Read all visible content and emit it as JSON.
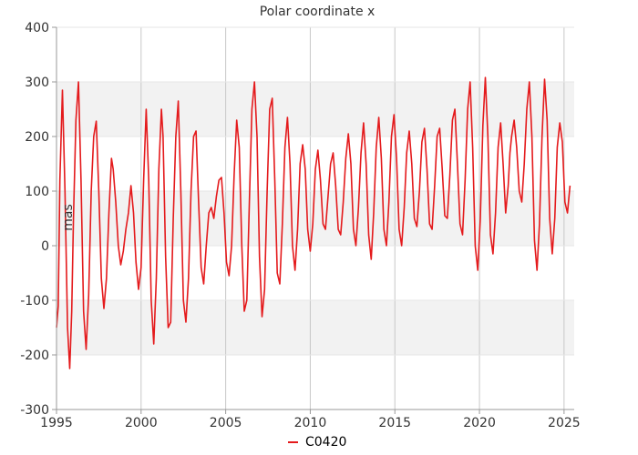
{
  "chart_data": {
    "type": "line",
    "title": "Polar coordinate x",
    "xlabel": "",
    "ylabel": "mas",
    "xlim": [
      1995,
      2025.6
    ],
    "ylim": [
      -300,
      400
    ],
    "x_ticks": [
      "1995",
      "2000",
      "2005",
      "2010",
      "2015",
      "2020",
      "2025"
    ],
    "y_ticks": [
      "-300",
      "-200",
      "-100",
      "0",
      "100",
      "200",
      "300",
      "400"
    ],
    "grid": true,
    "bands": [
      [
        -200,
        -100
      ],
      [
        0,
        100
      ],
      [
        200,
        300
      ]
    ],
    "legend": {
      "position": "bottom-center"
    },
    "colors": {
      "series": "#e41a1c",
      "band": "#f2f2f2",
      "grid": "#c8c8c8",
      "axis": "#999999"
    },
    "series": [
      {
        "name": "C0420",
        "points": [
          [
            1995.0,
            -150
          ],
          [
            1995.1,
            -110
          ],
          [
            1995.2,
            120
          ],
          [
            1995.35,
            285
          ],
          [
            1995.5,
            100
          ],
          [
            1995.65,
            -150
          ],
          [
            1995.78,
            -225
          ],
          [
            1995.9,
            -120
          ],
          [
            1996.0,
            50
          ],
          [
            1996.15,
            230
          ],
          [
            1996.3,
            300
          ],
          [
            1996.45,
            120
          ],
          [
            1996.6,
            -120
          ],
          [
            1996.75,
            -190
          ],
          [
            1996.9,
            -90
          ],
          [
            1997.05,
            100
          ],
          [
            1997.2,
            200
          ],
          [
            1997.35,
            228
          ],
          [
            1997.5,
            100
          ],
          [
            1997.65,
            -60
          ],
          [
            1997.8,
            -115
          ],
          [
            1997.95,
            -60
          ],
          [
            1998.1,
            60
          ],
          [
            1998.25,
            160
          ],
          [
            1998.35,
            140
          ],
          [
            1998.5,
            80
          ],
          [
            1998.65,
            0
          ],
          [
            1998.8,
            -35
          ],
          [
            1998.95,
            -10
          ],
          [
            1999.1,
            30
          ],
          [
            1999.25,
            60
          ],
          [
            1999.4,
            110
          ],
          [
            1999.55,
            60
          ],
          [
            1999.7,
            -30
          ],
          [
            1999.85,
            -80
          ],
          [
            2000.0,
            -40
          ],
          [
            2000.15,
            120
          ],
          [
            2000.3,
            250
          ],
          [
            2000.45,
            120
          ],
          [
            2000.6,
            -100
          ],
          [
            2000.75,
            -180
          ],
          [
            2000.9,
            -60
          ],
          [
            2001.05,
            140
          ],
          [
            2001.2,
            250
          ],
          [
            2001.3,
            200
          ],
          [
            2001.45,
            -20
          ],
          [
            2001.6,
            -150
          ],
          [
            2001.75,
            -140
          ],
          [
            2001.9,
            50
          ],
          [
            2002.05,
            200
          ],
          [
            2002.2,
            265
          ],
          [
            2002.35,
            100
          ],
          [
            2002.5,
            -100
          ],
          [
            2002.65,
            -140
          ],
          [
            2002.8,
            -60
          ],
          [
            2002.95,
            100
          ],
          [
            2003.1,
            200
          ],
          [
            2003.25,
            210
          ],
          [
            2003.4,
            80
          ],
          [
            2003.55,
            -40
          ],
          [
            2003.7,
            -70
          ],
          [
            2003.85,
            0
          ],
          [
            2004.0,
            60
          ],
          [
            2004.15,
            70
          ],
          [
            2004.3,
            50
          ],
          [
            2004.45,
            90
          ],
          [
            2004.6,
            120
          ],
          [
            2004.75,
            125
          ],
          [
            2004.9,
            60
          ],
          [
            2005.05,
            -30
          ],
          [
            2005.2,
            -55
          ],
          [
            2005.35,
            0
          ],
          [
            2005.5,
            130
          ],
          [
            2005.65,
            230
          ],
          [
            2005.8,
            180
          ],
          [
            2005.95,
            0
          ],
          [
            2006.1,
            -120
          ],
          [
            2006.25,
            -100
          ],
          [
            2006.4,
            80
          ],
          [
            2006.55,
            250
          ],
          [
            2006.7,
            300
          ],
          [
            2006.85,
            200
          ],
          [
            2007.0,
            -20
          ],
          [
            2007.15,
            -130
          ],
          [
            2007.3,
            -80
          ],
          [
            2007.45,
            100
          ],
          [
            2007.6,
            250
          ],
          [
            2007.75,
            270
          ],
          [
            2007.9,
            120
          ],
          [
            2008.05,
            -50
          ],
          [
            2008.2,
            -70
          ],
          [
            2008.35,
            40
          ],
          [
            2008.5,
            180
          ],
          [
            2008.65,
            235
          ],
          [
            2008.8,
            150
          ],
          [
            2008.95,
            0
          ],
          [
            2009.1,
            -45
          ],
          [
            2009.25,
            30
          ],
          [
            2009.4,
            150
          ],
          [
            2009.55,
            185
          ],
          [
            2009.7,
            140
          ],
          [
            2009.85,
            30
          ],
          [
            2010.0,
            -10
          ],
          [
            2010.15,
            40
          ],
          [
            2010.3,
            140
          ],
          [
            2010.45,
            175
          ],
          [
            2010.6,
            120
          ],
          [
            2010.75,
            40
          ],
          [
            2010.9,
            30
          ],
          [
            2011.05,
            90
          ],
          [
            2011.2,
            150
          ],
          [
            2011.35,
            170
          ],
          [
            2011.5,
            110
          ],
          [
            2011.65,
            30
          ],
          [
            2011.8,
            20
          ],
          [
            2011.95,
            80
          ],
          [
            2012.1,
            160
          ],
          [
            2012.25,
            205
          ],
          [
            2012.4,
            150
          ],
          [
            2012.55,
            30
          ],
          [
            2012.7,
            0
          ],
          [
            2012.85,
            70
          ],
          [
            2013.0,
            170
          ],
          [
            2013.15,
            225
          ],
          [
            2013.3,
            150
          ],
          [
            2013.45,
            20
          ],
          [
            2013.6,
            -25
          ],
          [
            2013.75,
            60
          ],
          [
            2013.9,
            180
          ],
          [
            2014.05,
            235
          ],
          [
            2014.2,
            160
          ],
          [
            2014.35,
            30
          ],
          [
            2014.5,
            0
          ],
          [
            2014.65,
            80
          ],
          [
            2014.8,
            200
          ],
          [
            2014.95,
            240
          ],
          [
            2015.1,
            160
          ],
          [
            2015.25,
            30
          ],
          [
            2015.4,
            0
          ],
          [
            2015.55,
            70
          ],
          [
            2015.7,
            170
          ],
          [
            2015.85,
            210
          ],
          [
            2016.0,
            150
          ],
          [
            2016.15,
            50
          ],
          [
            2016.3,
            35
          ],
          [
            2016.45,
            100
          ],
          [
            2016.6,
            190
          ],
          [
            2016.75,
            215
          ],
          [
            2016.9,
            140
          ],
          [
            2017.05,
            40
          ],
          [
            2017.2,
            30
          ],
          [
            2017.35,
            110
          ],
          [
            2017.5,
            200
          ],
          [
            2017.65,
            215
          ],
          [
            2017.8,
            140
          ],
          [
            2017.95,
            55
          ],
          [
            2018.1,
            50
          ],
          [
            2018.25,
            130
          ],
          [
            2018.4,
            230
          ],
          [
            2018.55,
            250
          ],
          [
            2018.7,
            150
          ],
          [
            2018.85,
            40
          ],
          [
            2019.0,
            20
          ],
          [
            2019.15,
            120
          ],
          [
            2019.3,
            250
          ],
          [
            2019.45,
            300
          ],
          [
            2019.6,
            180
          ],
          [
            2019.75,
            0
          ],
          [
            2019.9,
            -45
          ],
          [
            2020.05,
            50
          ],
          [
            2020.2,
            220
          ],
          [
            2020.35,
            308
          ],
          [
            2020.5,
            200
          ],
          [
            2020.65,
            20
          ],
          [
            2020.8,
            -15
          ],
          [
            2020.95,
            60
          ],
          [
            2021.1,
            180
          ],
          [
            2021.25,
            225
          ],
          [
            2021.4,
            150
          ],
          [
            2021.55,
            60
          ],
          [
            2021.7,
            110
          ],
          [
            2021.8,
            170
          ],
          [
            2021.9,
            200
          ],
          [
            2022.05,
            230
          ],
          [
            2022.2,
            180
          ],
          [
            2022.35,
            100
          ],
          [
            2022.5,
            80
          ],
          [
            2022.65,
            150
          ],
          [
            2022.8,
            250
          ],
          [
            2022.95,
            300
          ],
          [
            2023.1,
            200
          ],
          [
            2023.25,
            10
          ],
          [
            2023.4,
            -45
          ],
          [
            2023.55,
            40
          ],
          [
            2023.7,
            200
          ],
          [
            2023.85,
            305
          ],
          [
            2024.0,
            230
          ],
          [
            2024.15,
            50
          ],
          [
            2024.3,
            -15
          ],
          [
            2024.45,
            50
          ],
          [
            2024.6,
            180
          ],
          [
            2024.75,
            225
          ],
          [
            2024.9,
            190
          ],
          [
            2025.05,
            80
          ],
          [
            2025.2,
            60
          ],
          [
            2025.35,
            110
          ]
        ]
      }
    ]
  }
}
